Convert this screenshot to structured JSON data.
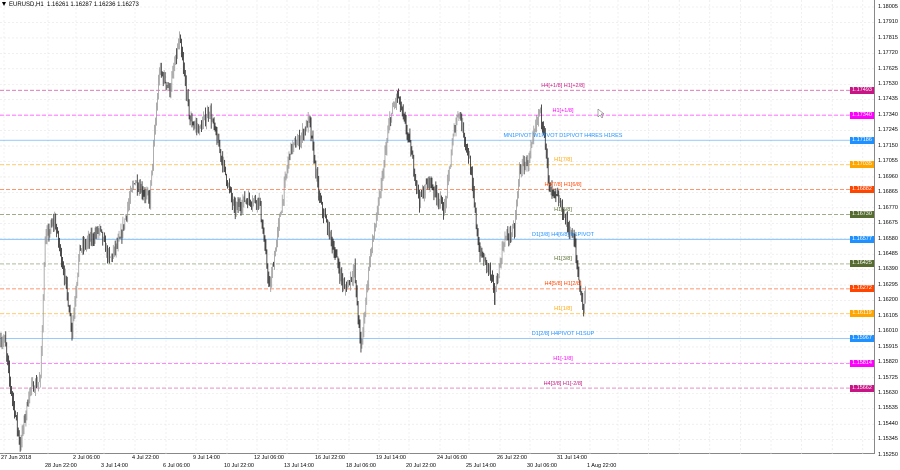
{
  "header": {
    "symbol_tf": "EURUSD,H1",
    "ohlc": "1.16261 1.16287 1.16236 1.16273"
  },
  "y_axis": {
    "ticks": [
      "1.18005",
      "1.17910",
      "1.17815",
      "1.17720",
      "1.17625",
      "1.17530",
      "1.17435",
      "1.17340",
      "1.17245",
      "1.17150",
      "1.17055",
      "1.16960",
      "1.16865",
      "1.16770",
      "1.16675",
      "1.16580",
      "1.16485",
      "1.16390",
      "1.16295",
      "1.16200",
      "1.16105",
      "1.16010",
      "1.15915",
      "1.15820",
      "1.15725",
      "1.15630",
      "1.15535",
      "1.15440",
      "1.15345",
      "1.15250"
    ]
  },
  "x_axis": {
    "ticks": [
      "27 Jun 2018",
      "28 Jun 22:00",
      "2 Jul 06:00",
      "3 Jul 14:00",
      "4 Jul 22:00",
      "6 Jul 06:00",
      "9 Jul 14:00",
      "10 Jul 22:00",
      "12 Jul 06:00",
      "13 Jul 14:00",
      "16 Jul 22:00",
      "18 Jul 06:00",
      "19 Jul 14:00",
      "20 Jul 22:00",
      "24 Jul 06:00",
      "25 Jul 14:00",
      "26 Jul 22:00",
      "30 Jul 06:00",
      "31 Jul 14:00",
      "1 Aug 22:00"
    ]
  },
  "levels": [
    {
      "price": "1.17493",
      "label": "H4[+1/8] H1[+2/8]",
      "color": "#c71585"
    },
    {
      "price": "1.17340",
      "label": "H1[+1/8]",
      "color": "#ff00ff"
    },
    {
      "price": "1.17186",
      "label": "MN1PIVOT W1PIVOT D1PIVOT H4RES H1RES",
      "color": "#1e90ff",
      "solid": true
    },
    {
      "price": "1.17035",
      "label": "H1[7/8]",
      "color": "#ffa500"
    },
    {
      "price": "1.16882",
      "label": "H4[7/8] H1[6/8]",
      "color": "#ff4500"
    },
    {
      "price": "1.16730",
      "label": "H1[5/8]",
      "color": "#556b2f"
    },
    {
      "price": "1.16577",
      "label": "D1[3/8] H4[6/8] H1PIVOT",
      "color": "#1e90ff",
      "solid": true
    },
    {
      "price": "1.16425",
      "label": "H1[3/8]",
      "color": "#556b2f"
    },
    {
      "price": "1.16272",
      "label": "H4[5/8] H1[2/8]",
      "color": "#ff4500"
    },
    {
      "price": "1.16119",
      "label": "H1[1/8]",
      "color": "#ffa500"
    },
    {
      "price": "1.15967",
      "label": "D1[2/8] H4PIVOT H1SUP",
      "color": "#1e90ff",
      "solid": true
    },
    {
      "price": "1.15814",
      "label": "H1[-1/8]",
      "color": "#ff00ff"
    },
    {
      "price": "1.15662",
      "label": "H4[3/8] H1[-2/8]",
      "color": "#c71585"
    }
  ],
  "chart_data": {
    "type": "candlestick",
    "symbol": "EURUSD",
    "timeframe": "H1",
    "ylim": [
      1.152,
      1.1806
    ],
    "grid": true,
    "last_bar": {
      "open": 1.16261,
      "high": 1.16287,
      "low": 1.16236,
      "close": 1.16273
    },
    "approx_close_keypoints": [
      [
        0,
        1.15957
      ],
      [
        5,
        1.15957
      ],
      [
        10,
        1.15711
      ],
      [
        21,
        1.15311
      ],
      [
        31,
        1.1565
      ],
      [
        42,
        1.15711
      ],
      [
        47,
        1.16572
      ],
      [
        57,
        1.16695
      ],
      [
        68,
        1.16326
      ],
      [
        75,
        1.16019
      ],
      [
        83,
        1.16511
      ],
      [
        104,
        1.16634
      ],
      [
        114,
        1.16449
      ],
      [
        125,
        1.16572
      ],
      [
        140,
        1.16941
      ],
      [
        156,
        1.16818
      ],
      [
        166,
        1.17618
      ],
      [
        177,
        1.17495
      ],
      [
        187,
        1.17802
      ],
      [
        198,
        1.1731
      ],
      [
        208,
        1.17249
      ],
      [
        218,
        1.17372
      ],
      [
        229,
        1.17126
      ],
      [
        244,
        1.16757
      ],
      [
        255,
        1.16818
      ],
      [
        270,
        1.16818
      ],
      [
        281,
        1.16265
      ],
      [
        291,
        1.16695
      ],
      [
        302,
        1.17126
      ],
      [
        312,
        1.17187
      ],
      [
        322,
        1.1731
      ],
      [
        333,
        1.16818
      ],
      [
        348,
        1.16511
      ],
      [
        359,
        1.16265
      ],
      [
        369,
        1.16388
      ],
      [
        376,
        1.15896
      ],
      [
        385,
        1.16449
      ],
      [
        395,
        1.16818
      ],
      [
        406,
        1.1731
      ],
      [
        414,
        1.17464
      ],
      [
        426,
        1.17187
      ],
      [
        437,
        1.16818
      ],
      [
        447,
        1.16941
      ],
      [
        463,
        1.16757
      ],
      [
        473,
        1.17249
      ],
      [
        478,
        1.17372
      ],
      [
        489,
        1.17064
      ],
      [
        499,
        1.16511
      ],
      [
        510,
        1.16388
      ],
      [
        515,
        1.16234
      ],
      [
        525,
        1.16572
      ],
      [
        536,
        1.16634
      ],
      [
        541,
        1.17003
      ],
      [
        551,
        1.17064
      ],
      [
        562,
        1.17372
      ],
      [
        567,
        1.17249
      ],
      [
        572,
        1.1688
      ],
      [
        582,
        1.16818
      ],
      [
        593,
        1.16634
      ],
      [
        598,
        1.16572
      ],
      [
        603,
        1.16326
      ],
      [
        608,
        1.16142
      ],
      [
        610,
        1.16273
      ]
    ]
  }
}
